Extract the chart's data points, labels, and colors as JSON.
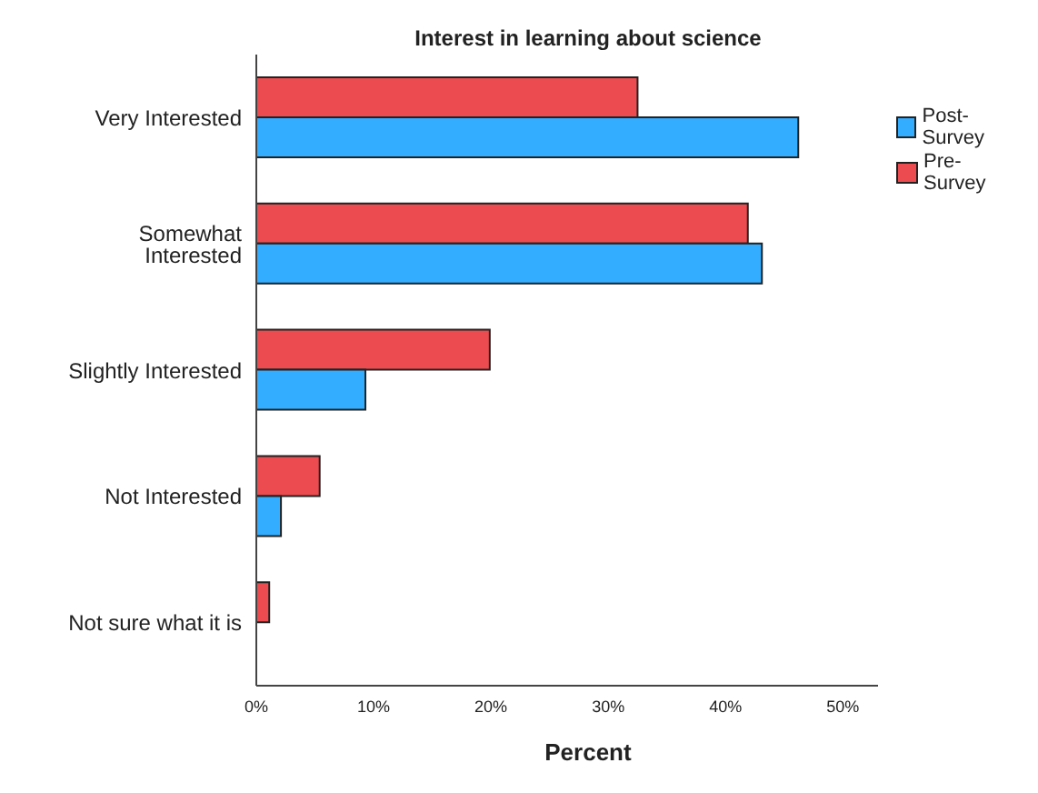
{
  "chart_data": {
    "type": "bar",
    "orientation": "horizontal",
    "title": "Interest in learning about science",
    "xlabel": "Percent",
    "categories": [
      "Very Interested",
      "Somewhat Interested",
      "Slightly Interested",
      "Not Interested",
      "Not sure what it is"
    ],
    "series": [
      {
        "name": "Post-Survey",
        "color": "#33adff",
        "values": [
          46.2,
          43.1,
          9.3,
          2.1,
          0
        ]
      },
      {
        "name": "Pre-Survey",
        "color": "#ec4b4f",
        "values": [
          32.5,
          41.9,
          19.9,
          5.4,
          1.1
        ]
      }
    ],
    "xlim": [
      0,
      53
    ],
    "xticks": [
      {
        "value": 0,
        "label": "0%"
      },
      {
        "value": 10,
        "label": "10%"
      },
      {
        "value": 20,
        "label": "20%"
      },
      {
        "value": 30,
        "label": "30%"
      },
      {
        "value": 40,
        "label": "40%"
      },
      {
        "value": 50,
        "label": "50%"
      }
    ],
    "grid": false,
    "legend": "top right"
  }
}
